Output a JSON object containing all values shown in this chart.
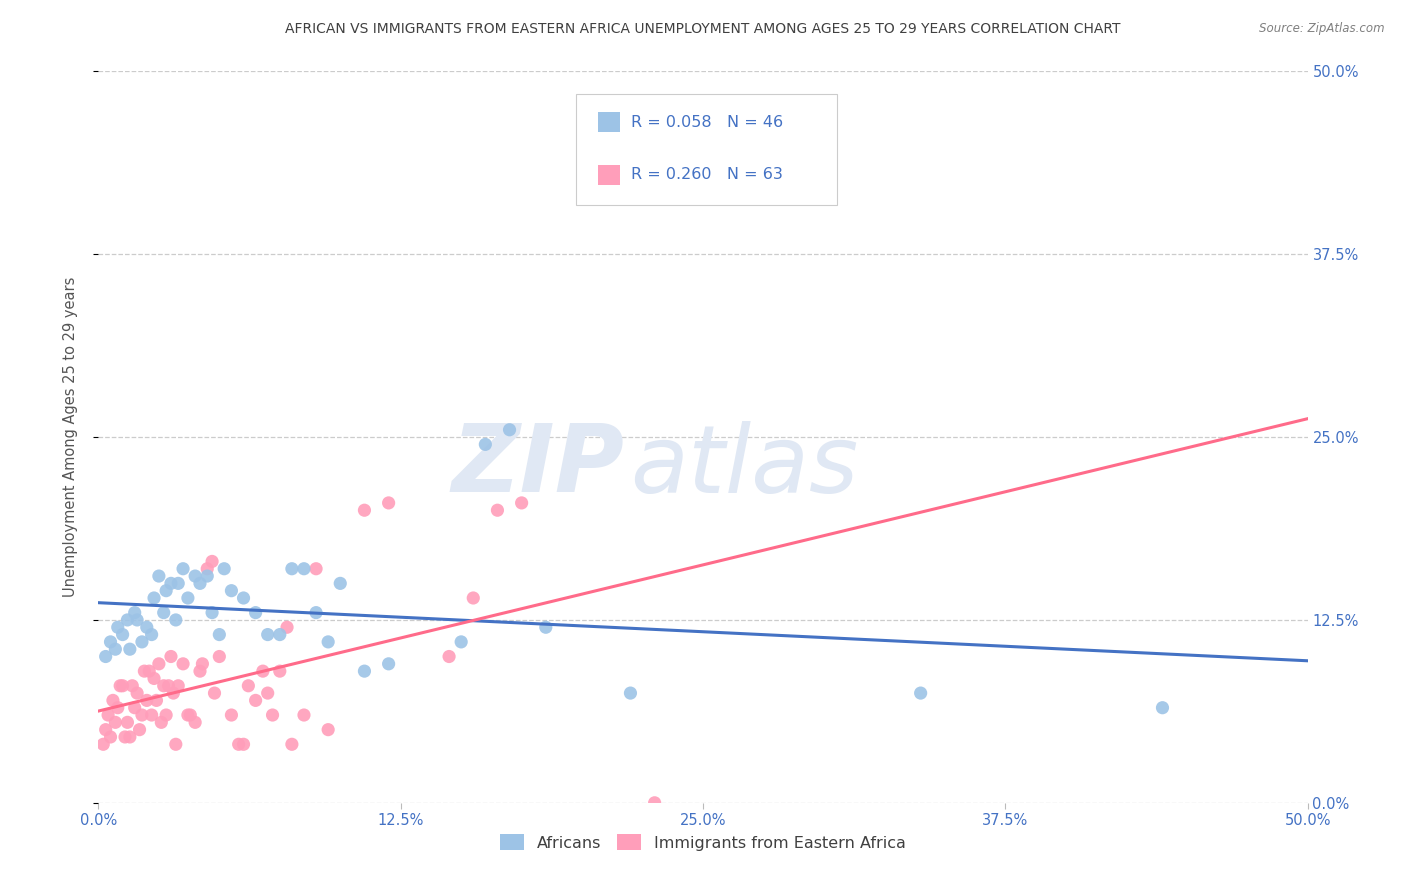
{
  "title": "AFRICAN VS IMMIGRANTS FROM EASTERN AFRICA UNEMPLOYMENT AMONG AGES 25 TO 29 YEARS CORRELATION CHART",
  "source": "Source: ZipAtlas.com",
  "ylabel": "Unemployment Among Ages 25 to 29 years",
  "legend_top_blue_label": "R = 0.058   N = 46",
  "legend_top_pink_label": "R = 0.260   N = 63",
  "legend_bottom_blue": "Africans",
  "legend_bottom_pink": "Immigrants from Eastern Africa",
  "blue_scatter": [
    [
      0.003,
      0.1
    ],
    [
      0.005,
      0.11
    ],
    [
      0.007,
      0.105
    ],
    [
      0.008,
      0.12
    ],
    [
      0.01,
      0.115
    ],
    [
      0.012,
      0.125
    ],
    [
      0.013,
      0.105
    ],
    [
      0.015,
      0.13
    ],
    [
      0.016,
      0.125
    ],
    [
      0.018,
      0.11
    ],
    [
      0.02,
      0.12
    ],
    [
      0.022,
      0.115
    ],
    [
      0.023,
      0.14
    ],
    [
      0.025,
      0.155
    ],
    [
      0.027,
      0.13
    ],
    [
      0.028,
      0.145
    ],
    [
      0.03,
      0.15
    ],
    [
      0.032,
      0.125
    ],
    [
      0.033,
      0.15
    ],
    [
      0.035,
      0.16
    ],
    [
      0.037,
      0.14
    ],
    [
      0.04,
      0.155
    ],
    [
      0.042,
      0.15
    ],
    [
      0.045,
      0.155
    ],
    [
      0.047,
      0.13
    ],
    [
      0.05,
      0.115
    ],
    [
      0.052,
      0.16
    ],
    [
      0.055,
      0.145
    ],
    [
      0.06,
      0.14
    ],
    [
      0.065,
      0.13
    ],
    [
      0.07,
      0.115
    ],
    [
      0.075,
      0.115
    ],
    [
      0.08,
      0.16
    ],
    [
      0.085,
      0.16
    ],
    [
      0.09,
      0.13
    ],
    [
      0.095,
      0.11
    ],
    [
      0.1,
      0.15
    ],
    [
      0.11,
      0.09
    ],
    [
      0.12,
      0.095
    ],
    [
      0.15,
      0.11
    ],
    [
      0.16,
      0.245
    ],
    [
      0.17,
      0.255
    ],
    [
      0.185,
      0.12
    ],
    [
      0.22,
      0.075
    ],
    [
      0.34,
      0.075
    ],
    [
      0.44,
      0.065
    ]
  ],
  "pink_scatter": [
    [
      0.002,
      0.04
    ],
    [
      0.003,
      0.05
    ],
    [
      0.004,
      0.06
    ],
    [
      0.005,
      0.045
    ],
    [
      0.006,
      0.07
    ],
    [
      0.007,
      0.055
    ],
    [
      0.008,
      0.065
    ],
    [
      0.009,
      0.08
    ],
    [
      0.01,
      0.08
    ],
    [
      0.011,
      0.045
    ],
    [
      0.012,
      0.055
    ],
    [
      0.013,
      0.045
    ],
    [
      0.014,
      0.08
    ],
    [
      0.015,
      0.065
    ],
    [
      0.016,
      0.075
    ],
    [
      0.017,
      0.05
    ],
    [
      0.018,
      0.06
    ],
    [
      0.019,
      0.09
    ],
    [
      0.02,
      0.07
    ],
    [
      0.021,
      0.09
    ],
    [
      0.022,
      0.06
    ],
    [
      0.023,
      0.085
    ],
    [
      0.024,
      0.07
    ],
    [
      0.025,
      0.095
    ],
    [
      0.026,
      0.055
    ],
    [
      0.027,
      0.08
    ],
    [
      0.028,
      0.06
    ],
    [
      0.029,
      0.08
    ],
    [
      0.03,
      0.1
    ],
    [
      0.031,
      0.075
    ],
    [
      0.032,
      0.04
    ],
    [
      0.033,
      0.08
    ],
    [
      0.035,
      0.095
    ],
    [
      0.037,
      0.06
    ],
    [
      0.038,
      0.06
    ],
    [
      0.04,
      0.055
    ],
    [
      0.042,
      0.09
    ],
    [
      0.043,
      0.095
    ],
    [
      0.045,
      0.16
    ],
    [
      0.047,
      0.165
    ],
    [
      0.048,
      0.075
    ],
    [
      0.05,
      0.1
    ],
    [
      0.055,
      0.06
    ],
    [
      0.058,
      0.04
    ],
    [
      0.06,
      0.04
    ],
    [
      0.062,
      0.08
    ],
    [
      0.065,
      0.07
    ],
    [
      0.068,
      0.09
    ],
    [
      0.07,
      0.075
    ],
    [
      0.072,
      0.06
    ],
    [
      0.075,
      0.09
    ],
    [
      0.078,
      0.12
    ],
    [
      0.08,
      0.04
    ],
    [
      0.085,
      0.06
    ],
    [
      0.09,
      0.16
    ],
    [
      0.095,
      0.05
    ],
    [
      0.11,
      0.2
    ],
    [
      0.12,
      0.205
    ],
    [
      0.145,
      0.1
    ],
    [
      0.155,
      0.14
    ],
    [
      0.165,
      0.2
    ],
    [
      0.175,
      0.205
    ],
    [
      0.23,
      0.0
    ]
  ],
  "blue_line_color": "#4472C4",
  "pink_line_color": "#FF6B8A",
  "blue_dot_color": "#9DC3E6",
  "pink_dot_color": "#FF9EBA",
  "grid_color": "#CCCCCC",
  "background_color": "#FFFFFF",
  "title_color": "#404040",
  "source_color": "#808080",
  "tick_label_color": "#4472C4",
  "legend_text_color": "#4472C4",
  "ylabel_color": "#555555",
  "xmin": 0.0,
  "xmax": 0.5,
  "ymin": 0.0,
  "ymax": 0.5,
  "xtick_vals": [
    0.0,
    0.125,
    0.25,
    0.375,
    0.5
  ],
  "ytick_vals": [
    0.0,
    0.125,
    0.25,
    0.375,
    0.5
  ],
  "tick_labels": [
    "0.0%",
    "12.5%",
    "25.0%",
    "37.5%",
    "50.0%"
  ],
  "watermark_zip": "ZIP",
  "watermark_atlas": "atlas",
  "watermark_color": "#E0E8F4"
}
